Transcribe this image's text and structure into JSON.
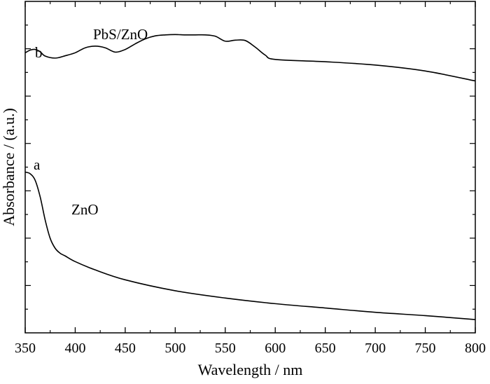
{
  "chart_data": {
    "type": "line",
    "title": "",
    "xlabel": "Wavelength / nm",
    "ylabel": "Absorbance / (a.u.)",
    "xlim": [
      350,
      800
    ],
    "ylim": [
      0,
      1
    ],
    "xticks": [
      "350",
      "400",
      "450",
      "500",
      "550",
      "600",
      "650",
      "700",
      "750",
      "800"
    ],
    "y_tick_labels_shown": false,
    "grid": false,
    "legend": "none",
    "series": [
      {
        "curve_label": "a",
        "annotation": "ZnO",
        "color": "#000000",
        "x": [
          350,
          355,
          360,
          365,
          370,
          375,
          380,
          385,
          390,
          400,
          420,
          450,
          500,
          550,
          600,
          650,
          700,
          750,
          800
        ],
        "y": [
          0.485,
          0.48,
          0.46,
          0.41,
          0.34,
          0.285,
          0.255,
          0.24,
          0.232,
          0.215,
          0.19,
          0.16,
          0.127,
          0.105,
          0.088,
          0.075,
          0.062,
          0.052,
          0.04
        ]
      },
      {
        "curve_label": "b",
        "annotation": "PbS/ZnO",
        "color": "#000000",
        "x": [
          350,
          355,
          360,
          365,
          370,
          380,
          390,
          400,
          410,
          420,
          430,
          440,
          450,
          460,
          470,
          480,
          490,
          500,
          510,
          520,
          530,
          540,
          550,
          560,
          570,
          580,
          590,
          600,
          650,
          700,
          750,
          800
        ],
        "y": [
          0.845,
          0.853,
          0.855,
          0.848,
          0.835,
          0.829,
          0.836,
          0.845,
          0.86,
          0.865,
          0.86,
          0.847,
          0.855,
          0.872,
          0.887,
          0.896,
          0.899,
          0.9,
          0.899,
          0.899,
          0.899,
          0.895,
          0.88,
          0.883,
          0.882,
          0.862,
          0.838,
          0.825,
          0.818,
          0.808,
          0.79,
          0.76
        ]
      }
    ]
  }
}
